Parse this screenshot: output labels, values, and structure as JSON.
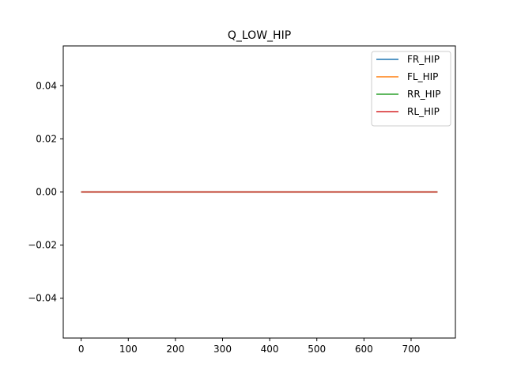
{
  "chart_data": {
    "type": "line",
    "title": "Q_LOW_HIP",
    "xlabel": "",
    "ylabel": "",
    "xlim": [
      -38,
      794
    ],
    "ylim": [
      -0.055,
      0.055
    ],
    "grid": false,
    "legend_position": "top-right",
    "x_ticks": [
      0,
      100,
      200,
      300,
      400,
      500,
      600,
      700
    ],
    "y_ticks": [
      -0.04,
      -0.02,
      0.0,
      0.02,
      0.04
    ],
    "y_tick_labels": [
      "−0.04",
      "−0.02",
      "0.00",
      "0.02",
      "0.04"
    ],
    "series": [
      {
        "name": "FR_HIP",
        "color": "#1f77b4",
        "x": [
          0,
          756
        ],
        "y": [
          0,
          0
        ]
      },
      {
        "name": "FL_HIP",
        "color": "#ff7f0e",
        "x": [
          0,
          756
        ],
        "y": [
          0,
          0
        ]
      },
      {
        "name": "RR_HIP",
        "color": "#2ca02c",
        "x": [
          0,
          756
        ],
        "y": [
          0,
          0
        ]
      },
      {
        "name": "RL_HIP",
        "color": "#d62728",
        "x": [
          0,
          756
        ],
        "y": [
          0,
          0
        ]
      }
    ]
  }
}
